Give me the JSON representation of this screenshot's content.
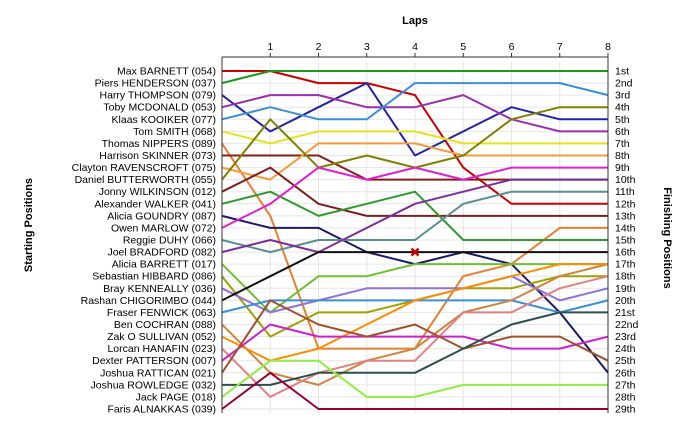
{
  "chart_data": {
    "type": "line",
    "title": "",
    "xlabel": "Laps",
    "ylabel_left": "Starting Positions",
    "ylabel_right": "Finishing Positions",
    "x": [
      0,
      1,
      2,
      3,
      4,
      5,
      6,
      7,
      8
    ],
    "x_tick_labels": [
      "1",
      "2",
      "3",
      "4",
      "5",
      "6",
      "7",
      "8"
    ],
    "x_range": [
      0,
      8
    ],
    "y_range": [
      1,
      29
    ],
    "y_inverted": true,
    "grid": true,
    "finishing_labels": [
      "1st",
      "2nd",
      "3rd",
      "4th",
      "5th",
      "6th",
      "7th",
      "8th",
      "9th",
      "10th",
      "11th",
      "12th",
      "13th",
      "14th",
      "15th",
      "16th",
      "17th",
      "18th",
      "19th",
      "20th",
      "21st",
      "22nd",
      "23rd",
      "24th",
      "25th",
      "26th",
      "27th",
      "28th",
      "29th"
    ],
    "annotation": {
      "type": "retired-marker",
      "x": 4,
      "y": 16
    },
    "series": [
      {
        "name": "Max BARNETT (054)",
        "color": "#cc0000",
        "values": [
          1,
          1,
          2,
          2,
          3,
          9,
          12,
          12,
          12
        ]
      },
      {
        "name": "Piers HENDERSON (037)",
        "color": "#1a9a1a",
        "values": [
          2,
          1,
          1,
          1,
          1,
          1,
          1,
          1,
          1
        ]
      },
      {
        "name": "Harry THOMPSON (079)",
        "color": "#2222aa",
        "values": [
          3,
          6,
          4,
          2,
          8,
          6,
          4,
          5,
          5
        ]
      },
      {
        "name": "Toby MCDONALD (053)",
        "color": "#9b2fae",
        "values": [
          4,
          3,
          3,
          4,
          4,
          3,
          5,
          6,
          6
        ]
      },
      {
        "name": "Klaas KOOIKER (077)",
        "color": "#3b8fd6",
        "values": [
          5,
          4,
          5,
          5,
          2,
          2,
          2,
          2,
          3
        ]
      },
      {
        "name": "Tom SMITH (068)",
        "color": "#e8e21e",
        "values": [
          6,
          7,
          6,
          6,
          6,
          7,
          7,
          7,
          7
        ]
      },
      {
        "name": "Thomas NIPPERS (089)",
        "color": "#e87f2f",
        "values": [
          7,
          13,
          24,
          24,
          24,
          18,
          17,
          14,
          14
        ]
      },
      {
        "name": "Harrison SKINNER (073)",
        "color": "#8b1a1a",
        "values": [
          8,
          8,
          8,
          10,
          10,
          10,
          10,
          10,
          10
        ]
      },
      {
        "name": "Clayton RAVENSCROFT (075)",
        "color": "#f39c3c",
        "values": [
          9,
          10,
          7,
          7,
          7,
          8,
          8,
          8,
          8
        ]
      },
      {
        "name": "Daniel BUTTERWORTH (055)",
        "color": "#808000",
        "values": [
          10,
          5,
          9,
          8,
          9,
          8,
          5,
          4,
          4
        ]
      },
      {
        "name": "Jonny WILKINSON (012)",
        "color": "#7a1f1f",
        "values": [
          11,
          9,
          12,
          13,
          13,
          13,
          13,
          13,
          13
        ]
      },
      {
        "name": "Alexander WALKER (041)",
        "color": "#2f9a2f",
        "values": [
          12,
          11,
          13,
          12,
          11,
          15,
          15,
          15,
          15
        ]
      },
      {
        "name": "Alicia GOUNDRY (087)",
        "color": "#1a1a66",
        "values": [
          13,
          14,
          14,
          16,
          17,
          16,
          17,
          21,
          26
        ]
      },
      {
        "name": "Owen MARLOW (072)",
        "color": "#e020d0",
        "values": [
          14,
          12,
          9,
          10,
          9,
          10,
          9,
          9,
          9
        ]
      },
      {
        "name": "Reggie DUHY (066)",
        "color": "#5a8f8f",
        "values": [
          15,
          16,
          15,
          15,
          15,
          12,
          11,
          11,
          11
        ]
      },
      {
        "name": "Joel BRADFORD (082)",
        "color": "#7a2f9a",
        "values": [
          16,
          15,
          16,
          14,
          12,
          11,
          10,
          10,
          10
        ]
      },
      {
        "name": "Alicia BARRETT (017)",
        "color": "#70c030",
        "values": [
          17,
          21,
          18,
          18,
          17,
          17,
          17,
          17,
          17
        ]
      },
      {
        "name": "Sebastian HIBBARD (086)",
        "color": "#a0a000",
        "values": [
          18,
          23,
          21,
          21,
          20,
          19,
          19,
          18,
          18
        ]
      },
      {
        "name": "Bray KENNEALLY (036)",
        "color": "#9370db",
        "values": [
          19,
          21,
          20,
          19,
          19,
          19,
          18,
          20,
          19
        ]
      },
      {
        "name": "Rashan CHIGORIMBO (044)",
        "color": "#111111",
        "values": [
          20,
          18,
          16,
          16,
          16,
          16,
          16,
          16,
          16
        ]
      },
      {
        "name": "Fraser FENWICK (063)",
        "color": "#3b8fd6",
        "values": [
          21,
          20,
          20,
          20,
          20,
          20,
          20,
          21,
          20
        ]
      },
      {
        "name": "Ben COCHRAN (088)",
        "color": "#cd853f",
        "values": [
          22,
          26,
          27,
          25,
          24,
          21,
          20,
          18,
          17
        ]
      },
      {
        "name": "Zak O SULLIVAN (052)",
        "color": "#ff8c00",
        "values": [
          23,
          25,
          24,
          22,
          20,
          19,
          18,
          17,
          17
        ]
      },
      {
        "name": "Lorcan HANAFIN (023)",
        "color": "#e08080",
        "values": [
          24,
          28,
          26,
          25,
          25,
          21,
          21,
          19,
          18
        ]
      },
      {
        "name": "Dexter PATTERSON (007)",
        "color": "#cc22cc",
        "values": [
          25,
          22,
          23,
          23,
          23,
          23,
          24,
          24,
          23
        ]
      },
      {
        "name": "Joshua RATTICAN (021)",
        "color": "#a0522d",
        "values": [
          26,
          20,
          22,
          23,
          22,
          24,
          23,
          23,
          25
        ]
      },
      {
        "name": "Joshua ROWLEDGE (032)",
        "color": "#2e4f4f",
        "values": [
          27,
          27,
          26,
          26,
          26,
          24,
          22,
          21,
          21
        ]
      },
      {
        "name": "Jack PAGE (018)",
        "color": "#90ee40",
        "values": [
          28,
          25,
          25,
          28,
          28,
          27,
          27,
          27,
          27
        ]
      },
      {
        "name": "Faris ALNAKKAS (039)",
        "color": "#990033",
        "values": [
          29,
          26,
          29,
          29,
          29,
          29,
          29,
          29,
          29
        ]
      }
    ]
  }
}
